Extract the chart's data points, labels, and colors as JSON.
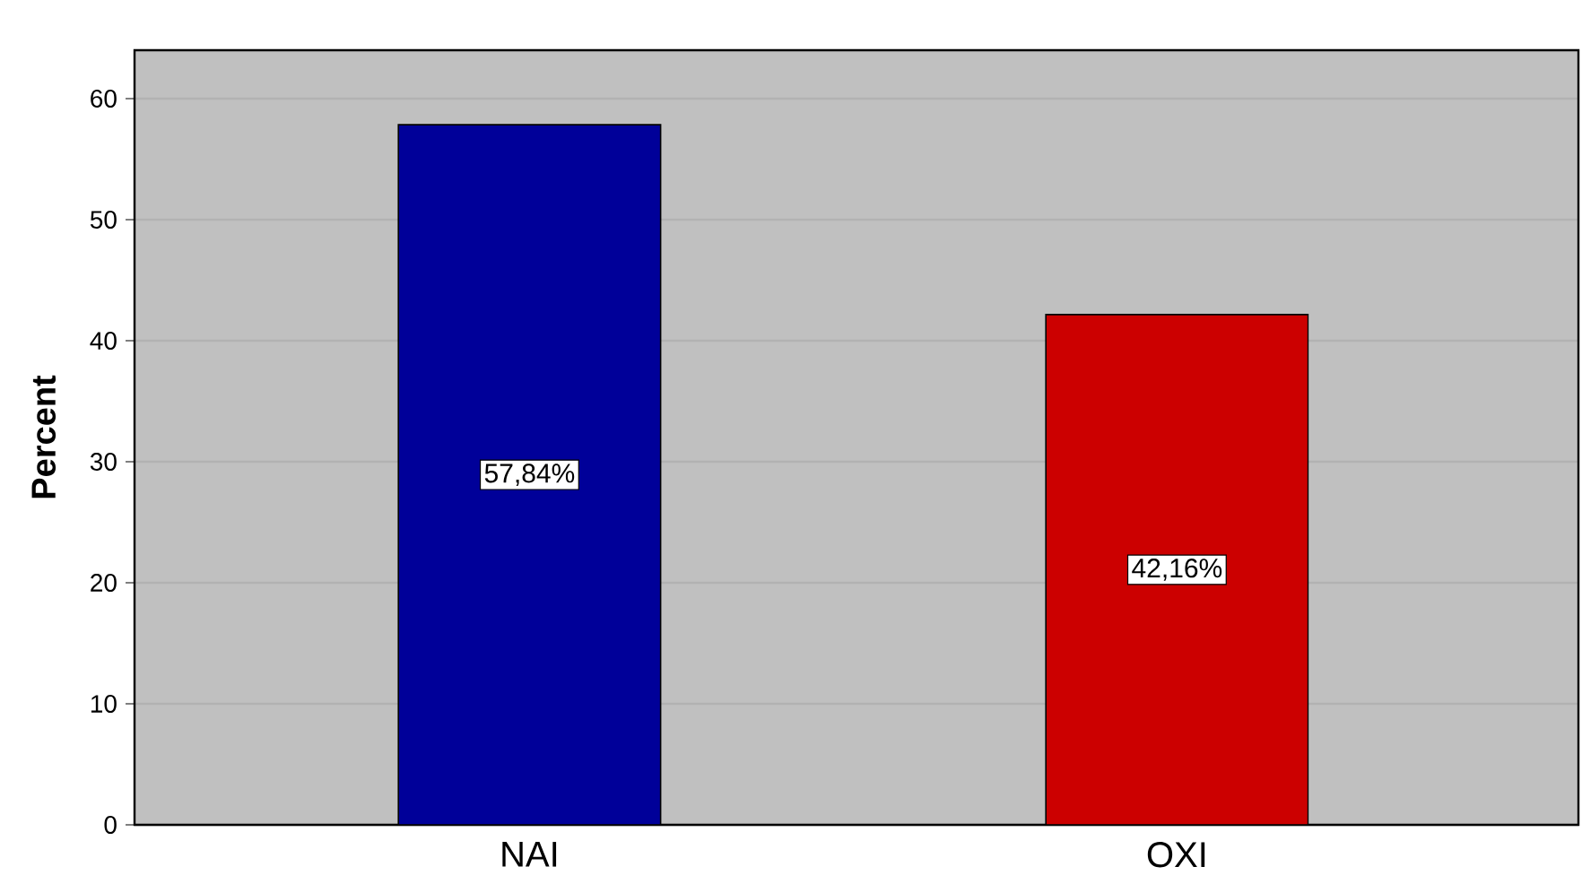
{
  "chart_data": {
    "type": "bar",
    "ylabel": "Percent",
    "categories": [
      "NAI",
      "OXI"
    ],
    "values": [
      57.84,
      42.16
    ],
    "colors": [
      "#000099",
      "#cc0000"
    ],
    "value_labels": [
      "57,84%",
      "42,16%"
    ],
    "ylim": [
      0,
      64
    ],
    "yticks": [
      0,
      10,
      20,
      30,
      40,
      50,
      60
    ],
    "grid": "y"
  }
}
